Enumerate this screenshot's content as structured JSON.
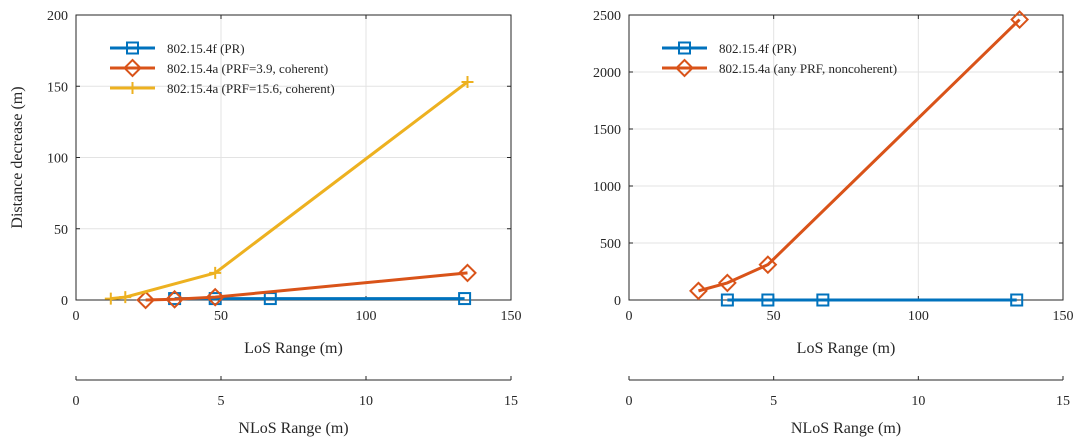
{
  "chart_data": [
    {
      "type": "line",
      "title": "",
      "xlabel": "LoS Range (m)",
      "ylabel": "Distance decrease (m)",
      "xlim": [
        0,
        150
      ],
      "ylim": [
        0,
        200
      ],
      "xticks": [
        0,
        50,
        100,
        150
      ],
      "yticks": [
        0,
        50,
        100,
        150,
        200
      ],
      "secondary_axis": {
        "label": "NLoS Range (m)",
        "lim": [
          0,
          15
        ],
        "ticks": [
          0,
          5,
          10,
          15
        ]
      },
      "grid": true,
      "legend_position": "top-left",
      "series": [
        {
          "name": "802.15.4f (PR)",
          "color": "#0072BD",
          "marker": "square",
          "x": [
            34,
            48,
            67,
            134
          ],
          "y": [
            1,
            1,
            1,
            1
          ]
        },
        {
          "name": "802.15.4a (PRF=3.9, coherent)",
          "color": "#D95319",
          "marker": "diamond",
          "x": [
            24,
            34,
            48,
            135
          ],
          "y": [
            0,
            0.5,
            2,
            19
          ]
        },
        {
          "name": "802.15.4a (PRF=15.6, coherent)",
          "color": "#EDB120",
          "marker": "plus",
          "x": [
            12,
            17,
            48,
            135
          ],
          "y": [
            1,
            2,
            19,
            153
          ]
        }
      ]
    },
    {
      "type": "line",
      "title": "",
      "xlabel": "LoS Range (m)",
      "ylabel": "",
      "xlim": [
        0,
        150
      ],
      "ylim": [
        0,
        2500
      ],
      "xticks": [
        0,
        50,
        100,
        150
      ],
      "yticks": [
        0,
        500,
        1000,
        1500,
        2000,
        2500
      ],
      "secondary_axis": {
        "label": "NLoS Range (m)",
        "lim": [
          0,
          15
        ],
        "ticks": [
          0,
          5,
          10,
          15
        ]
      },
      "grid": true,
      "legend_position": "top-left",
      "series": [
        {
          "name": "802.15.4f (PR)",
          "color": "#0072BD",
          "marker": "square",
          "x": [
            34,
            48,
            67,
            134
          ],
          "y": [
            0,
            0,
            0,
            0
          ]
        },
        {
          "name": "802.15.4a (any PRF, noncoherent)",
          "color": "#D95319",
          "marker": "diamond",
          "x": [
            24,
            34,
            48,
            135
          ],
          "y": [
            80,
            150,
            310,
            2460
          ]
        }
      ]
    }
  ]
}
